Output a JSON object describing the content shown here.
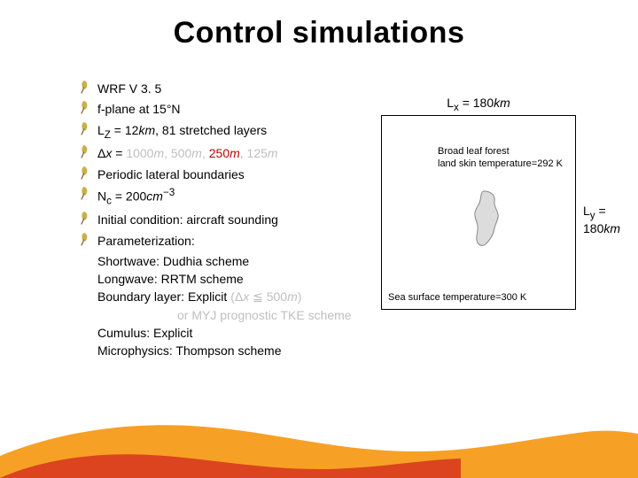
{
  "title": "Control simulations",
  "bullets": [
    {
      "text_html": "WRF V 3. 5"
    },
    {
      "text_html": "f-plane at 15°N"
    },
    {
      "text_html": "L<sub>Z</sub> = 12<span class='italic'>km</span>, 81 stretched layers"
    },
    {
      "text_html": "Δ<span class='italic'>x</span> = <span class='grey'>1000<span class='italic'>m</span>, 500<span class='italic'>m</span>,</span> <span class='red'>250<span class='italic'>m</span></span><span class='grey'>, 125<span class='italic'>m</span></span>"
    },
    {
      "text_html": "Periodic lateral boundaries"
    },
    {
      "text_html": "N<sub>c</sub> = 200<span class='italic'>cm</span><sup>−3</sup>"
    },
    {
      "text_html": "Initial condition: aircraft sounding"
    },
    {
      "text_html": "Parameterization:"
    }
  ],
  "sublines": [
    {
      "html": "Shortwave: Dudhia scheme"
    },
    {
      "html": "Longwave: RRTM scheme"
    },
    {
      "html": "Boundary layer: Explicit <span class='grey'>(Δ<span class=\"italic\">x</span> ≦ 500<span class=\"italic\">m</span>)</span>"
    },
    {
      "html": "<span class='grey'>or MYJ prognostic TKE scheme</span>",
      "indent": 90
    },
    {
      "html": "Cumulus: Explicit"
    },
    {
      "html": "Microphysics: Thompson scheme"
    }
  ],
  "diagram": {
    "border_color": "#000000",
    "background_color": "#ffffff",
    "top_label_html": "L<sub>x</sub> = 180<span class='italic'>km</span>",
    "right_label_html": "L<sub>y</sub> = 180<span class='italic'>km</span>",
    "land_label_line1": "Broad leaf forest",
    "land_label_line2": "land skin temperature=292 K",
    "sea_label": "Sea surface temperature=300 K",
    "island_fill": "#dcdcdc",
    "island_stroke": "#888888"
  },
  "footer_colors": {
    "orange": "#f6a125",
    "red": "#d83a1f"
  },
  "bullet_icon_colors": {
    "leaf": "#c9b14a",
    "stem": "#7a5a2a"
  }
}
